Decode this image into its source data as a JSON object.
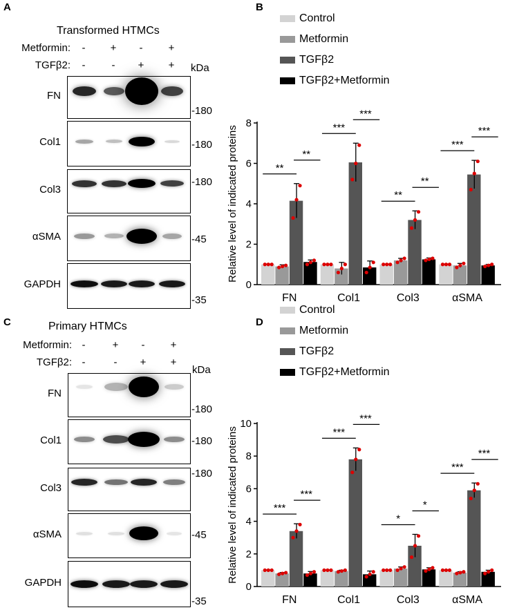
{
  "panels": {
    "A": {
      "letter": "A",
      "title": "Transformed HTMCs",
      "treatments": [
        {
          "name": "Metformin:",
          "signs": [
            "-",
            "+",
            "-",
            "+"
          ]
        },
        {
          "name": "TGFβ2:",
          "signs": [
            "-",
            "-",
            "+",
            "+"
          ]
        }
      ],
      "unit": "kDa",
      "blots": [
        {
          "name": "FN",
          "mw": "-180"
        },
        {
          "name": "Col1",
          "mw": "-180"
        },
        {
          "name": "Col3",
          "mw": "-180"
        },
        {
          "name": "αSMA",
          "mw": "-45"
        },
        {
          "name": "GAPDH",
          "mw": "-35"
        }
      ]
    },
    "C": {
      "letter": "C",
      "title": "Primary HTMCs",
      "treatments": [
        {
          "name": "Metformin:",
          "signs": [
            "-",
            "+",
            "-",
            "+"
          ]
        },
        {
          "name": "TGFβ2:",
          "signs": [
            "-",
            "-",
            "+",
            "+"
          ]
        }
      ],
      "unit": "kDa",
      "blots": [
        {
          "name": "FN",
          "mw": "-180"
        },
        {
          "name": "Col1",
          "mw": "-180"
        },
        {
          "name": "Col3",
          "mw": "-180"
        },
        {
          "name": "αSMA",
          "mw": "-45"
        },
        {
          "name": "GAPDH",
          "mw": "-35"
        }
      ]
    },
    "B": {
      "letter": "B"
    },
    "D": {
      "letter": "D"
    }
  },
  "colors": {
    "control": "#d3d3d3",
    "metformin": "#999999",
    "tgfb2": "#555555",
    "combo": "#000000",
    "dots": "#dd0000"
  },
  "chart_data": [
    {
      "type": "bar",
      "panel": "B",
      "ylabel": "Relative level of indicated proteins",
      "ylim": [
        0,
        8
      ],
      "yticks": [
        0,
        2,
        4,
        6,
        8
      ],
      "categories": [
        "FN",
        "Col1",
        "Col3",
        "αSMA"
      ],
      "series": [
        {
          "name": "Control",
          "values": [
            1.0,
            1.0,
            1.0,
            1.0
          ],
          "errors": [
            0.02,
            0.02,
            0.02,
            0.02
          ],
          "points": [
            [
              1,
              1,
              1
            ],
            [
              1,
              1,
              1
            ],
            [
              1,
              1,
              1
            ],
            [
              1,
              1,
              1
            ]
          ]
        },
        {
          "name": "Metformin",
          "values": [
            0.9,
            0.8,
            1.2,
            0.95
          ],
          "errors": [
            0.08,
            0.3,
            0.1,
            0.1
          ],
          "points": [
            [
              0.85,
              0.9,
              0.95
            ],
            [
              0.6,
              0.8,
              1.0
            ],
            [
              1.1,
              1.2,
              1.3
            ],
            [
              0.85,
              0.95,
              1.05
            ]
          ]
        },
        {
          "name": "TGFβ2",
          "values": [
            4.15,
            6.05,
            3.2,
            5.45
          ],
          "errors": [
            0.85,
            0.95,
            0.45,
            0.7
          ],
          "points": [
            [
              3.3,
              4.2,
              4.9
            ],
            [
              5.2,
              6.0,
              6.9
            ],
            [
              2.8,
              3.2,
              3.6
            ],
            [
              4.7,
              5.5,
              6.1
            ]
          ]
        },
        {
          "name": "TGFβ2+Metformin",
          "values": [
            1.12,
            0.85,
            1.25,
            0.95
          ],
          "errors": [
            0.1,
            0.32,
            0.07,
            0.05
          ],
          "points": [
            [
              1.0,
              1.1,
              1.2
            ],
            [
              0.6,
              0.85,
              1.1
            ],
            [
              1.2,
              1.25,
              1.3
            ],
            [
              0.9,
              0.95,
              1.0
            ]
          ]
        }
      ],
      "significance": [
        {
          "category": "FN",
          "left": "**",
          "right": "**"
        },
        {
          "category": "Col1",
          "left": "***",
          "right": "***"
        },
        {
          "category": "Col3",
          "left": "**",
          "right": "**"
        },
        {
          "category": "αSMA",
          "left": "***",
          "right": "***"
        }
      ],
      "legend": "top"
    },
    {
      "type": "bar",
      "panel": "D",
      "ylabel": "Relative level of indicated proteins",
      "ylim": [
        0,
        10
      ],
      "yticks": [
        0,
        2,
        4,
        6,
        8,
        10
      ],
      "categories": [
        "FN",
        "Col1",
        "Col3",
        "αSMA"
      ],
      "series": [
        {
          "name": "Control",
          "values": [
            1.0,
            1.0,
            1.0,
            1.0
          ],
          "errors": [
            0.02,
            0.02,
            0.02,
            0.02
          ],
          "points": [
            [
              1,
              1,
              1
            ],
            [
              1,
              1,
              1
            ],
            [
              1,
              1,
              1
            ],
            [
              1,
              1,
              1
            ]
          ]
        },
        {
          "name": "Metformin",
          "values": [
            0.8,
            0.95,
            1.1,
            0.85
          ],
          "errors": [
            0.06,
            0.05,
            0.1,
            0.06
          ],
          "points": [
            [
              0.75,
              0.8,
              0.85
            ],
            [
              0.9,
              0.95,
              1.0
            ],
            [
              1.0,
              1.1,
              1.2
            ],
            [
              0.8,
              0.85,
              0.9
            ]
          ]
        },
        {
          "name": "TGFβ2",
          "values": [
            3.4,
            7.8,
            2.5,
            5.9
          ],
          "errors": [
            0.45,
            0.7,
            0.7,
            0.45
          ],
          "points": [
            [
              3.0,
              3.4,
              3.8
            ],
            [
              7.0,
              7.8,
              8.4
            ],
            [
              1.8,
              2.5,
              3.1
            ],
            [
              5.4,
              5.9,
              6.3
            ]
          ]
        },
        {
          "name": "TGFβ2+Metformin",
          "values": [
            0.8,
            0.75,
            1.05,
            0.9
          ],
          "errors": [
            0.12,
            0.2,
            0.1,
            0.1
          ],
          "points": [
            [
              0.7,
              0.8,
              0.9
            ],
            [
              0.6,
              0.75,
              0.9
            ],
            [
              0.95,
              1.05,
              1.15
            ],
            [
              0.8,
              0.9,
              1.0
            ]
          ]
        }
      ],
      "significance": [
        {
          "category": "FN",
          "left": "***",
          "right": "***"
        },
        {
          "category": "Col1",
          "left": "***",
          "right": "***"
        },
        {
          "category": "Col3",
          "left": "*",
          "right": "*"
        },
        {
          "category": "αSMA",
          "left": "***",
          "right": "***"
        }
      ],
      "legend": "top"
    }
  ]
}
